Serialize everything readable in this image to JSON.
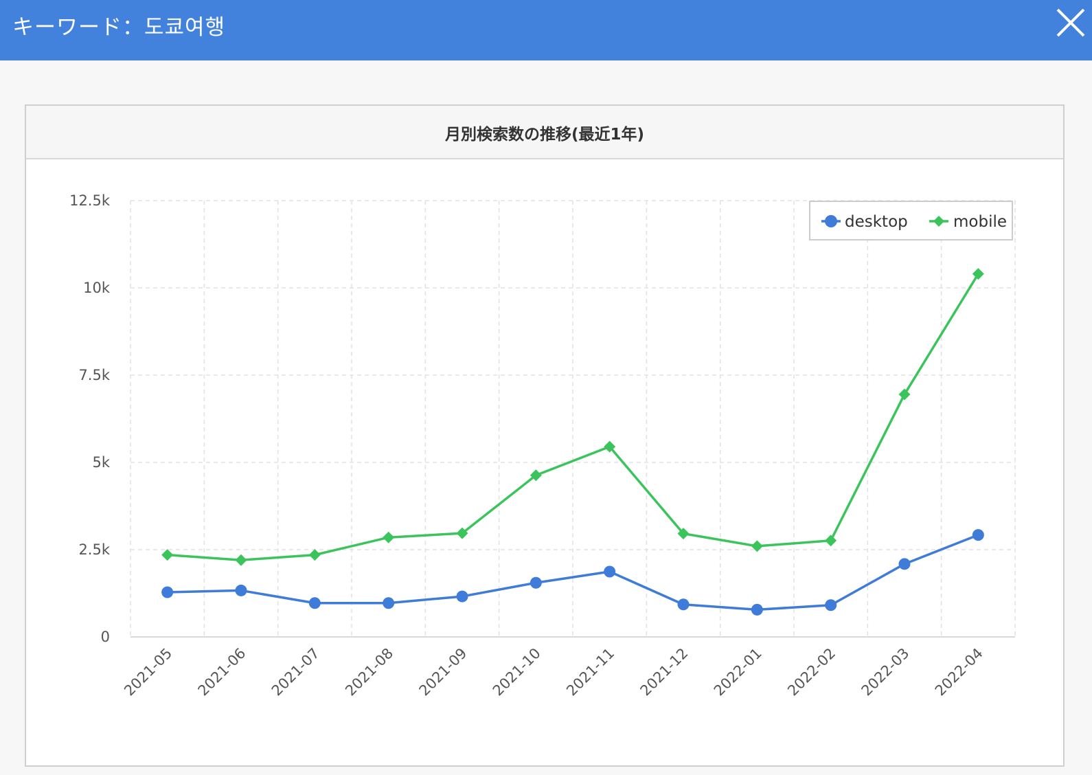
{
  "header": {
    "title": "キーワード：도쿄여행",
    "close_icon": "close-icon",
    "background": "#4382dc"
  },
  "card": {
    "title": "月別検索数の推移(最近1年)"
  },
  "chart_data": {
    "type": "line",
    "title": "月別検索数の推移(最近1年)",
    "xlabel": "",
    "ylabel": "",
    "categories": [
      "2021-05",
      "2021-06",
      "2021-07",
      "2021-08",
      "2021-09",
      "2021-10",
      "2021-11",
      "2021-12",
      "2022-01",
      "2022-02",
      "2022-03",
      "2022-04"
    ],
    "ylim": [
      0,
      12500
    ],
    "yticks": [
      0,
      2500,
      5000,
      7500,
      10000,
      12500
    ],
    "ytick_labels": [
      "0",
      "2.5k",
      "5k",
      "7.5k",
      "10k",
      "12.5k"
    ],
    "grid": true,
    "legend_position": "top-right",
    "series": [
      {
        "name": "desktop",
        "marker": "circle",
        "color": "#3f7bd9",
        "values": [
          1280,
          1330,
          970,
          970,
          1160,
          1550,
          1870,
          930,
          780,
          910,
          2090,
          2920
        ]
      },
      {
        "name": "mobile",
        "marker": "diamond",
        "color": "#3cc45c",
        "values": [
          2350,
          2200,
          2350,
          2850,
          2970,
          4630,
          5450,
          2960,
          2600,
          2760,
          6950,
          10400
        ]
      }
    ]
  }
}
